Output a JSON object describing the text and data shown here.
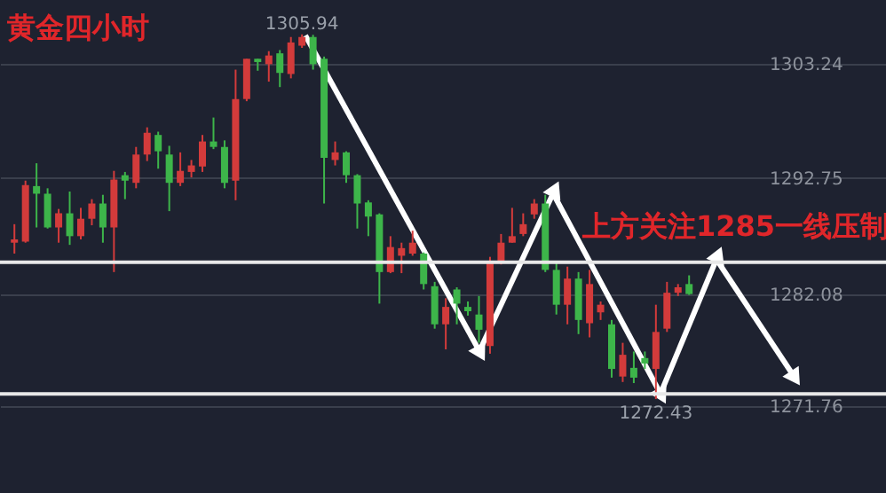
{
  "chart_data": {
    "type": "candlestick",
    "title": "黄金四小时",
    "categories": [
      null,
      null,
      null,
      null,
      null,
      null,
      null,
      null,
      null,
      null,
      null,
      null,
      null,
      null,
      null,
      null,
      null,
      null,
      null,
      null,
      null,
      null,
      null,
      null,
      null,
      null,
      null,
      null,
      null,
      null,
      null,
      null,
      null,
      null,
      null,
      null,
      null,
      null,
      null,
      null,
      null,
      null,
      null,
      null,
      null,
      null,
      null,
      null,
      null,
      null,
      null,
      null,
      null,
      null,
      null,
      null,
      null,
      null,
      null,
      null,
      null,
      null
    ],
    "ohlc": [
      [
        1286.8,
        1288.5,
        1285.8,
        1287.1
      ],
      [
        1286.9,
        1292.5,
        1286.8,
        1292.1
      ],
      [
        1292.0,
        1294.1,
        1288.2,
        1291.3
      ],
      [
        1291.3,
        1291.8,
        1288.1,
        1288.2
      ],
      [
        1288.2,
        1289.9,
        1286.8,
        1289.5
      ],
      [
        1289.5,
        1291.5,
        1286.6,
        1287.4
      ],
      [
        1287.4,
        1290.0,
        1287.1,
        1289.0
      ],
      [
        1289.0,
        1290.8,
        1288.4,
        1290.4
      ],
      [
        1290.4,
        1291.2,
        1286.8,
        1288.2
      ],
      [
        1288.2,
        1293.4,
        1284.1,
        1292.6
      ],
      [
        1293.0,
        1293.3,
        1290.8,
        1292.5
      ],
      [
        1292.3,
        1295.6,
        1291.8,
        1294.9
      ],
      [
        1294.9,
        1297.4,
        1294.3,
        1296.9
      ],
      [
        1296.7,
        1297.0,
        1293.6,
        1295.2
      ],
      [
        1294.9,
        1295.7,
        1289.7,
        1292.3
      ],
      [
        1292.3,
        1295.1,
        1292.0,
        1293.4
      ],
      [
        1293.3,
        1294.4,
        1292.8,
        1293.9
      ],
      [
        1293.8,
        1296.7,
        1293.3,
        1296.1
      ],
      [
        1296.1,
        1298.3,
        1295.4,
        1295.6
      ],
      [
        1295.6,
        1296.2,
        1291.8,
        1292.3
      ],
      [
        1292.5,
        1302.7,
        1290.7,
        1300.0
      ],
      [
        1300.0,
        1303.7,
        1299.8,
        1303.7
      ],
      [
        1303.7,
        1303.7,
        1302.6,
        1303.4
      ],
      [
        1303.2,
        1304.4,
        1301.6,
        1304.0
      ],
      [
        1304.2,
        1304.5,
        1301.1,
        1302.4
      ],
      [
        1302.3,
        1305.7,
        1301.9,
        1305.2
      ],
      [
        1304.9,
        1305.94,
        1304.7,
        1305.7
      ],
      [
        1305.7,
        1305.9,
        1302.7,
        1303.2
      ],
      [
        1303.7,
        1303.9,
        1290.4,
        1294.6
      ],
      [
        1294.4,
        1296.1,
        1293.9,
        1295.1
      ],
      [
        1295.1,
        1295.2,
        1292.3,
        1293.0
      ],
      [
        1293.0,
        1293.1,
        1288.1,
        1290.4
      ],
      [
        1290.5,
        1290.7,
        1287.4,
        1289.2
      ],
      [
        1289.4,
        1289.5,
        1281.2,
        1284.1
      ],
      [
        1284.1,
        1287.4,
        1284.0,
        1286.4
      ],
      [
        1285.6,
        1286.8,
        1284.0,
        1286.3
      ],
      [
        1285.8,
        1287.9,
        1285.6,
        1286.8
      ],
      [
        1285.8,
        1285.9,
        1282.5,
        1283.0
      ],
      [
        1282.8,
        1283.2,
        1278.9,
        1279.3
      ],
      [
        1279.3,
        1281.7,
        1277.0,
        1280.9
      ],
      [
        1282.5,
        1282.7,
        1279.3,
        1281.2
      ],
      [
        1280.9,
        1281.4,
        1280.1,
        1280.5
      ],
      [
        1280.2,
        1281.9,
        1277.6,
        1278.8
      ],
      [
        1277.3,
        1285.5,
        1276.6,
        1285.1
      ],
      [
        1285.1,
        1287.6,
        1284.8,
        1286.8
      ],
      [
        1286.8,
        1290.0,
        1286.8,
        1287.4
      ],
      [
        1287.6,
        1289.5,
        1287.4,
        1288.5
      ],
      [
        1289.4,
        1290.8,
        1289.0,
        1290.4
      ],
      [
        1290.4,
        1291.2,
        1284.1,
        1284.3
      ],
      [
        1284.3,
        1285.0,
        1280.2,
        1281.1
      ],
      [
        1281.1,
        1284.6,
        1279.3,
        1283.5
      ],
      [
        1283.5,
        1284.1,
        1278.4,
        1279.7
      ],
      [
        1279.4,
        1284.3,
        1278.1,
        1283.0
      ],
      [
        1280.4,
        1281.4,
        1279.7,
        1281.1
      ],
      [
        1279.3,
        1279.7,
        1274.4,
        1275.2
      ],
      [
        1274.5,
        1277.6,
        1274.0,
        1276.5
      ],
      [
        1275.3,
        1276.8,
        1273.9,
        1274.4
      ],
      [
        1276.2,
        1276.8,
        1275.2,
        1275.7
      ],
      [
        1275.2,
        1281.1,
        1272.43,
        1278.6
      ],
      [
        1278.9,
        1283.2,
        1278.6,
        1282.2
      ],
      [
        1282.2,
        1283.0,
        1281.9,
        1282.7
      ],
      [
        1283.0,
        1283.8,
        1282.0,
        1282.08
      ]
    ],
    "colors": [
      "#d33b3b",
      "#d33b3b",
      "#3db54a",
      "#3db54a",
      "#d33b3b",
      "#3db54a",
      "#d33b3b",
      "#d33b3b",
      "#3db54a",
      "#d33b3b",
      "#3db54a",
      "#d33b3b",
      "#d33b3b",
      "#3db54a",
      "#3db54a",
      "#d33b3b",
      "#d33b3b",
      "#d33b3b",
      "#3db54a",
      "#3db54a",
      "#d33b3b",
      "#d33b3b",
      "#3db54a",
      "#d33b3b",
      "#3db54a",
      "#d33b3b",
      "#d33b3b",
      "#3db54a",
      "#3db54a",
      "#d33b3b",
      "#3db54a",
      "#3db54a",
      "#3db54a",
      "#3db54a",
      "#d33b3b",
      "#d33b3b",
      "#d33b3b",
      "#3db54a",
      "#3db54a",
      "#d33b3b",
      "#3db54a",
      "#3db54a",
      "#3db54a",
      "#d33b3b",
      "#d33b3b",
      "#d33b3b",
      "#d33b3b",
      "#d33b3b",
      "#3db54a",
      "#3db54a",
      "#d33b3b",
      "#3db54a",
      "#d33b3b",
      "#d33b3b",
      "#3db54a",
      "#d33b3b",
      "#3db54a",
      "#3db54a",
      "#d33b3b",
      "#d33b3b",
      "#d33b3b",
      "#3db54a"
    ],
    "ylim": [
      1263.8,
      1309.1
    ],
    "yticks": [
      1303.24,
      1292.75,
      1282.08,
      1271.76
    ],
    "grid": "y",
    "ref_lines": [
      {
        "axis": "y",
        "value": 1285,
        "color": "#e8e8e8"
      },
      {
        "axis": "y",
        "value": 1272.9,
        "color": "#e8e8e8"
      }
    ],
    "annotations": [
      {
        "text": "1305.94",
        "y": 1305.94
      },
      {
        "text": "1272.43",
        "y": 1272.43
      },
      "上方关注1285一线压制"
    ]
  }
}
